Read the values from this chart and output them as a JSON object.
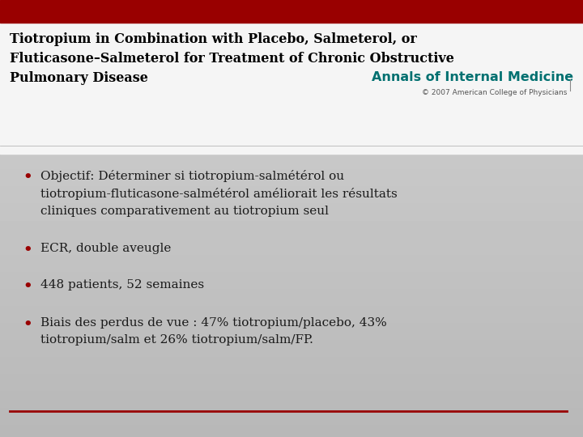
{
  "bg_color_top": "#c8c8c8",
  "bg_color_bottom": "#b8b8b8",
  "top_bar_color": "#990000",
  "header_bg_color": "#ffffff",
  "title_line1": "Tiotropium in Combination with Placebo, Salmeterol, or",
  "title_line2": "Fluticasone–Salmeterol for Treatment of Chronic Obstructive",
  "title_line3": "Pulmonary Disease",
  "journal_text": "Annals of Internal Medicine",
  "journal_color": "#007070",
  "copyright_text": "© 2007 American College of Physicians",
  "title_color": "#000000",
  "title_fontsize": 11.5,
  "journal_fontsize": 11.5,
  "copyright_fontsize": 6.5,
  "bullet_color": "#990000",
  "bullet_text_color": "#1a1a1a",
  "bullet_fontsize": 11.0,
  "bullets": [
    "Objectif: Déterminer si tiotropium-salmétérol ou\ntiotropium-fluticasone-salmétérol améliorait les résultats\ncliniques comparativement au tiotropium seul",
    "ECR, double aveugle",
    "448 patients, 52 semaines",
    "Biais des perdus de vue : 47% tiotropium/placebo, 43%\ntiotropium/salm et 26% tiotropium/salm/FP."
  ],
  "bottom_line_color": "#990000",
  "fig_width": 7.2,
  "fig_height": 5.4,
  "dpi": 100
}
